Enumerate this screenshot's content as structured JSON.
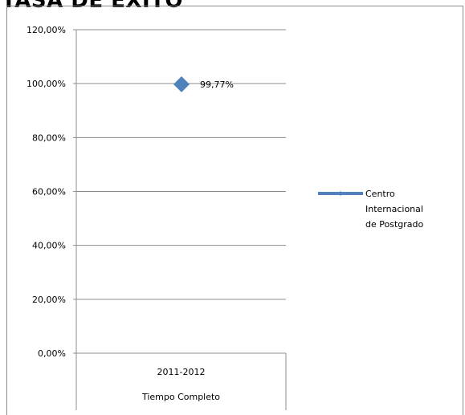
{
  "page": {
    "title": "TASA DE EXITO"
  },
  "chart_data": {
    "type": "line",
    "title": "",
    "xlabel": "",
    "ylabel": "",
    "categories": [
      "2011-2012"
    ],
    "category_sublabels": [
      "Tiempo Completo"
    ],
    "series": [
      {
        "name": "Centro Internacional de Postgrado",
        "values": [
          0.9977
        ],
        "color": "#4f81bd",
        "marker": "diamond"
      }
    ],
    "data_labels": [
      "99,77%"
    ],
    "y_ticks": [
      "0,00%",
      "20,00%",
      "40,00%",
      "60,00%",
      "80,00%",
      "100,00%",
      "120,00%"
    ],
    "ylim": [
      0,
      1.2
    ],
    "grid": true,
    "legend": "right"
  }
}
